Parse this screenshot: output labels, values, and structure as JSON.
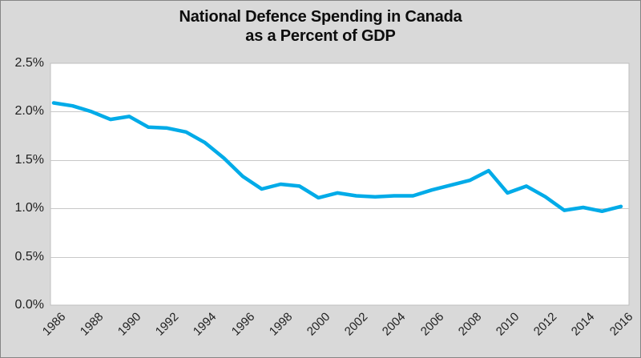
{
  "title": {
    "line1": "National Defence Spending in Canada",
    "line2": "as a Percent of GDP"
  },
  "chart_data": {
    "type": "line",
    "title": "National Defence Spending in Canada as a Percent of GDP",
    "xlabel": "",
    "ylabel": "",
    "x": [
      1986,
      1987,
      1988,
      1989,
      1990,
      1991,
      1992,
      1993,
      1994,
      1995,
      1996,
      1997,
      1998,
      1999,
      2000,
      2001,
      2002,
      2003,
      2004,
      2005,
      2006,
      2007,
      2008,
      2009,
      2010,
      2011,
      2012,
      2013,
      2014,
      2015,
      2016
    ],
    "series": [
      {
        "name": "defence-spending-pct-gdp",
        "values": [
          2.09,
          2.06,
          2.0,
          1.92,
          1.95,
          1.84,
          1.83,
          1.79,
          1.68,
          1.52,
          1.33,
          1.2,
          1.25,
          1.23,
          1.11,
          1.16,
          1.13,
          1.12,
          1.13,
          1.13,
          1.19,
          1.24,
          1.29,
          1.39,
          1.16,
          1.23,
          1.12,
          0.98,
          1.01,
          0.97,
          1.02
        ]
      }
    ],
    "x_tick_labels": [
      "1986",
      "1988",
      "1990",
      "1992",
      "1994",
      "1996",
      "1998",
      "2000",
      "2002",
      "2004",
      "2006",
      "2008",
      "2010",
      "2012",
      "2014",
      "2016"
    ],
    "y_tick_labels": [
      "0.0%",
      "0.5%",
      "1.0%",
      "1.5%",
      "2.0%",
      "2.5%"
    ],
    "ylim": [
      0,
      2.5
    ],
    "grid": "horizontal",
    "legend": "none",
    "colors": {
      "line": "#00ABE8",
      "background": "#D9D9D9",
      "plot_background": "#FFFFFF",
      "gridline": "#C8C8C8",
      "plot_border": "#BFBFBF",
      "text": "#1F1F1F"
    }
  }
}
